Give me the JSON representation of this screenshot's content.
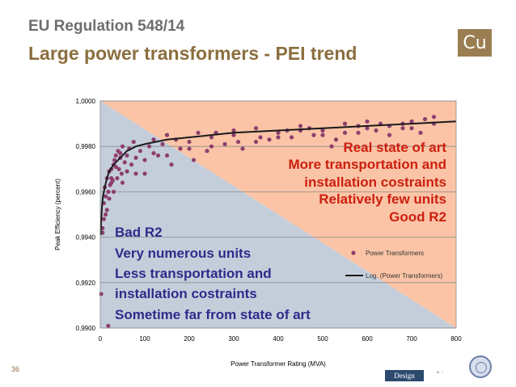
{
  "slide": {
    "title_line1": "EU Regulation 548/14",
    "title_line2": "Large power transformers - PEI trend",
    "logo_text": "Cu",
    "page_number": "36",
    "footer_logo_text": "Design"
  },
  "colors": {
    "title_gray": "#6e6e6e",
    "title_brown": "#8b6e3f",
    "region_upper": "#fbc4a6",
    "region_lower": "#c4cedb",
    "points": "#8e3f6e",
    "trend": "#1a1a1a",
    "annotation_red": "#cc1f0f",
    "annotation_blue": "#2c2c8a"
  },
  "chart_data": {
    "type": "scatter",
    "xlabel": "Power Transformer Rating (MVA)",
    "ylabel": "Peak Efficiency (percent)",
    "xlim": [
      0,
      800
    ],
    "ylim": [
      0.99,
      1.0
    ],
    "xticks": [
      0,
      100,
      200,
      300,
      400,
      500,
      600,
      700,
      800
    ],
    "yticks": [
      0.99,
      0.992,
      0.994,
      0.996,
      0.998,
      1.0
    ],
    "ytick_labels": [
      "0,9900",
      "0,9920",
      "0,9940",
      "0,9960",
      "0,9980",
      "1,0000"
    ],
    "grid": "horizontal",
    "legend_position": "right",
    "series": [
      {
        "name": "Power Transformers",
        "kind": "points",
        "x": [
          2,
          5,
          8,
          10,
          12,
          15,
          18,
          20,
          22,
          25,
          28,
          30,
          32,
          35,
          38,
          40,
          42,
          45,
          48,
          50,
          55,
          60,
          65,
          70,
          75,
          80,
          90,
          100,
          110,
          120,
          130,
          150,
          160,
          180,
          200,
          220,
          240,
          250,
          280,
          300,
          320,
          350,
          380,
          400,
          430,
          450,
          480,
          500,
          520,
          550,
          580,
          600,
          620,
          650,
          680,
          700,
          720,
          750,
          750,
          700,
          650,
          600,
          550,
          500,
          450,
          400,
          350,
          300,
          250,
          200,
          150,
          100,
          50,
          30,
          20,
          15,
          12,
          8,
          5,
          25,
          35,
          45,
          60,
          80,
          120,
          140,
          170,
          210,
          260,
          310,
          360,
          420,
          470,
          530,
          580,
          630,
          680,
          730,
          25,
          18
        ],
        "y": [
          0.9915,
          0.9942,
          0.9955,
          0.9962,
          0.9958,
          0.9966,
          0.996,
          0.9969,
          0.9963,
          0.997,
          0.9965,
          0.9972,
          0.9974,
          0.9976,
          0.9966,
          0.9978,
          0.997,
          0.9975,
          0.9968,
          0.998,
          0.9973,
          0.9976,
          0.9979,
          0.9972,
          0.9982,
          0.9968,
          0.9978,
          0.9974,
          0.998,
          0.9983,
          0.9976,
          0.9985,
          0.9972,
          0.9979,
          0.9982,
          0.9986,
          0.9978,
          0.9984,
          0.9981,
          0.9987,
          0.9979,
          0.9988,
          0.9983,
          0.9986,
          0.9984,
          0.9989,
          0.9985,
          0.9987,
          0.998,
          0.999,
          0.9986,
          0.9991,
          0.9987,
          0.9985,
          0.999,
          0.9988,
          0.9986,
          0.9993,
          0.999,
          0.9991,
          0.9989,
          0.9988,
          0.9986,
          0.9985,
          0.9987,
          0.9984,
          0.9982,
          0.9985,
          0.998,
          0.9979,
          0.9976,
          0.9968,
          0.9964,
          0.996,
          0.9957,
          0.9952,
          0.995,
          0.9948,
          0.9944,
          0.9966,
          0.9971,
          0.9977,
          0.9969,
          0.9975,
          0.9977,
          0.9981,
          0.9983,
          0.9974,
          0.9986,
          0.9982,
          0.9984,
          0.9987,
          0.9988,
          0.9983,
          0.9989,
          0.999,
          0.9988,
          0.9992,
          0.9964,
          0.9901
        ]
      },
      {
        "name": "Log. (Power Transformers)",
        "kind": "trend",
        "x": [
          1,
          2,
          4,
          6,
          10,
          15,
          20,
          30,
          40,
          60,
          80,
          100,
          150,
          200,
          300,
          400,
          500,
          600,
          700,
          800
        ],
        "y": [
          0.9941,
          0.9947,
          0.9954,
          0.9958,
          0.9962,
          0.9966,
          0.9969,
          0.9972,
          0.9974,
          0.9978,
          0.998,
          0.9981,
          0.9983,
          0.9984,
          0.9986,
          0.9987,
          0.9988,
          0.9989,
          0.999,
          0.9991
        ]
      }
    ],
    "annotations_right": [
      "Real state of art",
      "More transportation and",
      "installation costraints",
      "Relatively few units",
      "Good R2"
    ],
    "annotations_left": [
      "Bad R2",
      "Very numerous units",
      "Less transportation and",
      "installation costraints",
      "Sometime far from state of art"
    ]
  }
}
